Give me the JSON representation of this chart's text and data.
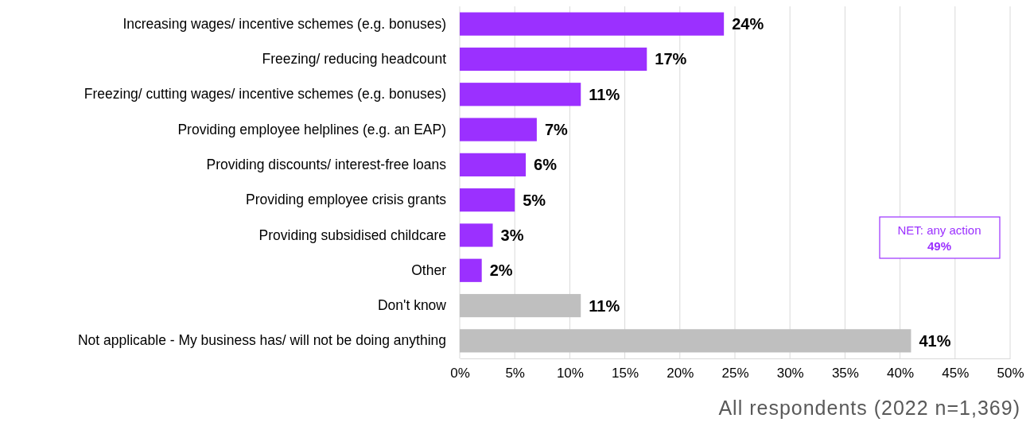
{
  "chart_data": {
    "type": "bar",
    "orientation": "horizontal",
    "categories": [
      "Increasing wages/ incentive schemes (e.g. bonuses)",
      "Freezing/ reducing headcount",
      "Freezing/ cutting wages/ incentive schemes (e.g. bonuses)",
      "Providing employee helplines (e.g. an EAP)",
      "Providing discounts/ interest-free loans",
      "Providing employee crisis grants",
      "Providing subsidised childcare",
      "Other",
      "Don't know",
      "Not applicable - My business has/ will not be doing anything"
    ],
    "values": [
      24,
      17,
      11,
      7,
      6,
      5,
      3,
      2,
      11,
      41
    ],
    "value_labels": [
      "24%",
      "17%",
      "11%",
      "7%",
      "6%",
      "5%",
      "3%",
      "2%",
      "11%",
      "41%"
    ],
    "colors": [
      "#9b30ff",
      "#9b30ff",
      "#9b30ff",
      "#9b30ff",
      "#9b30ff",
      "#9b30ff",
      "#9b30ff",
      "#9b30ff",
      "#bfbfbf",
      "#bfbfbf"
    ],
    "xlim": [
      0,
      50
    ],
    "xticks": [
      {
        "value": 0,
        "label": "0%"
      },
      {
        "value": 5,
        "label": "5%"
      },
      {
        "value": 10,
        "label": "10%"
      },
      {
        "value": 15,
        "label": "15%"
      },
      {
        "value": 20,
        "label": "20%"
      },
      {
        "value": 25,
        "label": "25%"
      },
      {
        "value": 30,
        "label": "30%"
      },
      {
        "value": 35,
        "label": "35%"
      },
      {
        "value": 40,
        "label": "40%"
      },
      {
        "value": 45,
        "label": "45%"
      },
      {
        "value": 50,
        "label": "50%"
      }
    ],
    "grid": "x",
    "annotations": [
      "NET: any action",
      "49%",
      "All respondents (2022 n=1,369)"
    ]
  }
}
